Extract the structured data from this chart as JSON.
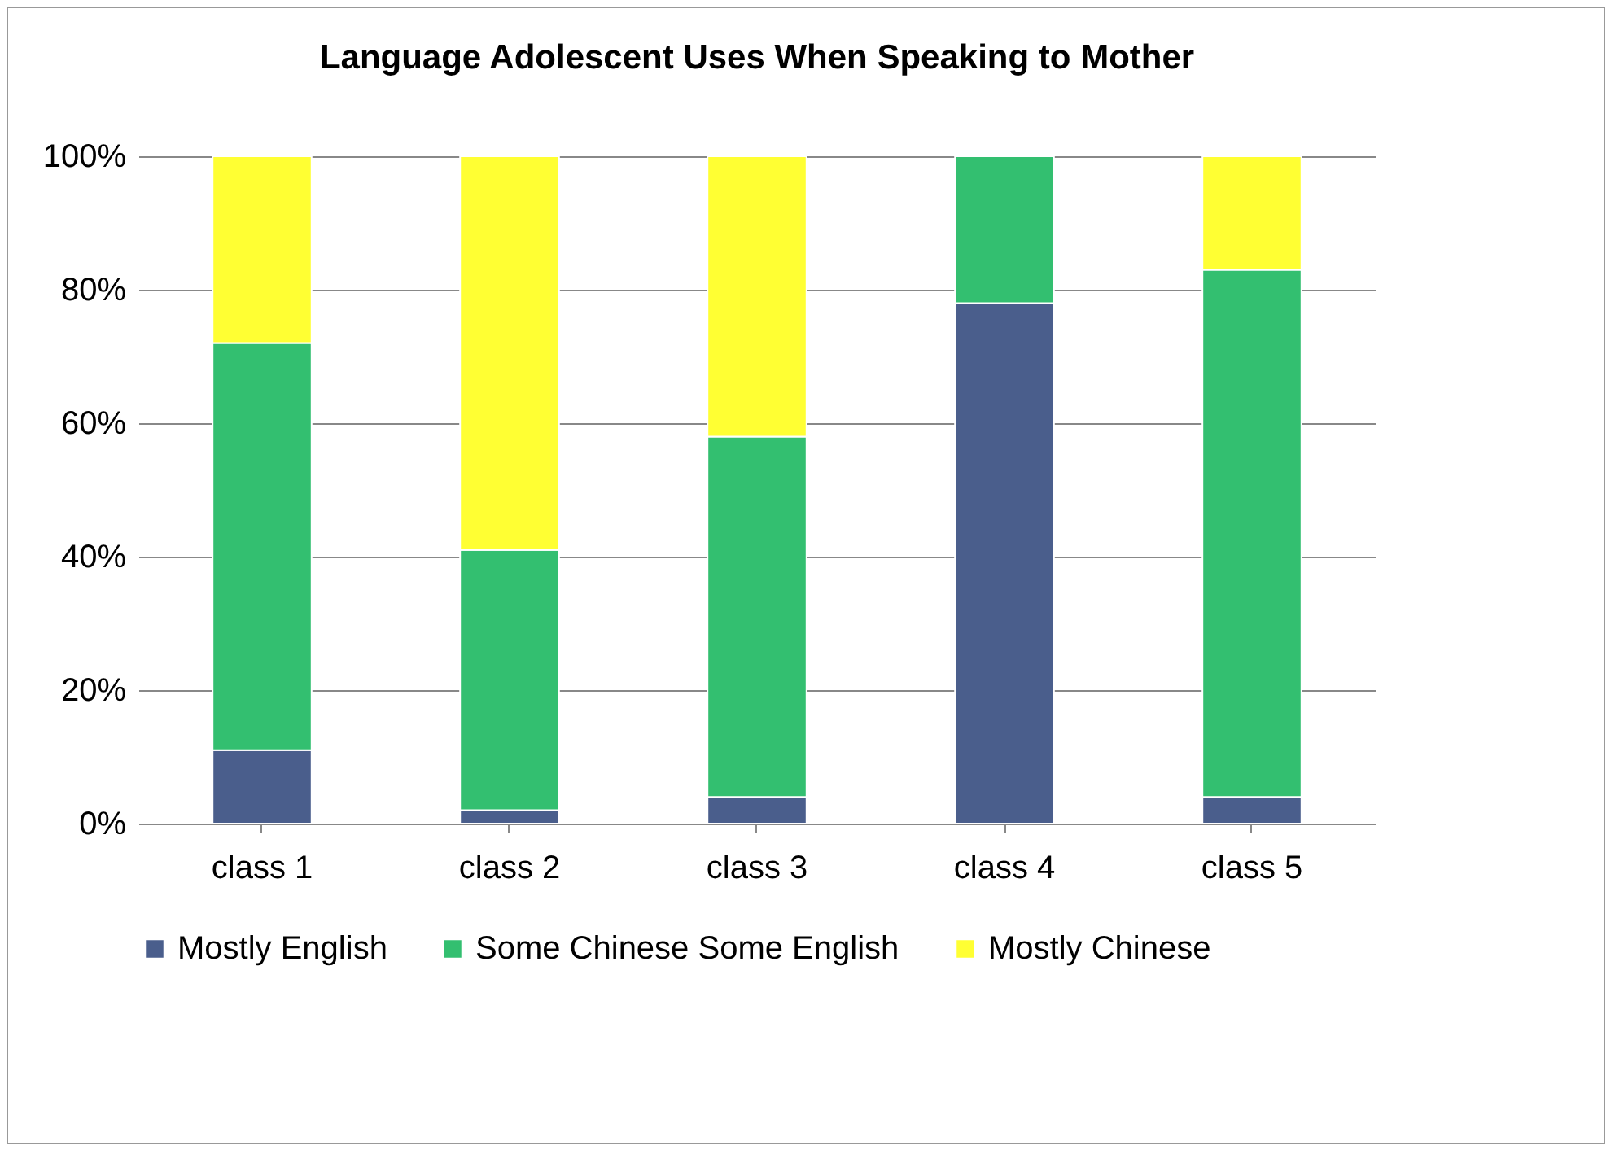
{
  "chart_data": {
    "type": "bar",
    "title": "Language Adolescent Uses When Speaking to Mother",
    "stacked": true,
    "categories": [
      "class 1",
      "class 2",
      "class 3",
      "class 4",
      "class 5"
    ],
    "series": [
      {
        "name": "Mostly English",
        "color": "#4a5e8c",
        "values": [
          11,
          2,
          4,
          78,
          4
        ]
      },
      {
        "name": "Some Chinese Some English",
        "color": "#33bf70",
        "values": [
          61,
          39,
          54,
          22,
          79
        ]
      },
      {
        "name": "Mostly Chinese",
        "color": "#ffff33",
        "values": [
          28,
          59,
          42,
          null,
          17
        ]
      }
    ],
    "ylim": [
      0,
      100
    ],
    "yticks": [
      {
        "value": 0,
        "label": "0%"
      },
      {
        "value": 20,
        "label": "20%"
      },
      {
        "value": 40,
        "label": "40%"
      },
      {
        "value": 60,
        "label": "60%"
      },
      {
        "value": 80,
        "label": "80%"
      },
      {
        "value": 100,
        "label": "100%"
      }
    ],
    "grid": "y",
    "legend": "bottom"
  }
}
